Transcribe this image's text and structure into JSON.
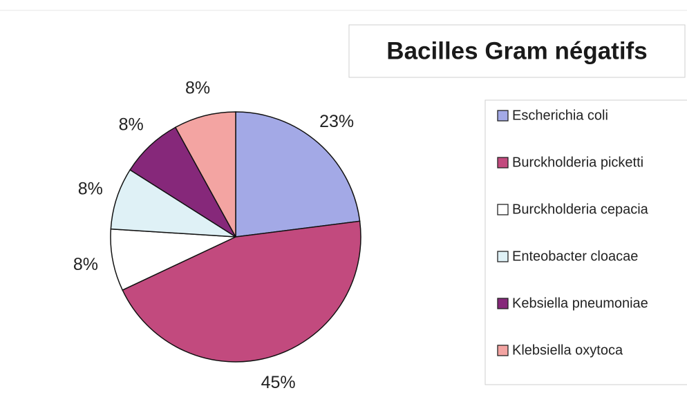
{
  "chart_data": {
    "type": "pie",
    "title": "Bacilles Gram négatifs",
    "categories": [
      "Escherichia coli",
      "Burckholderia picketti",
      "Burckholderia cepacia",
      "Enteobacter cloacae",
      "Kebsiella pneumoniae",
      "Klebsiella oxytoca"
    ],
    "values": [
      23,
      45,
      8,
      8,
      8,
      8
    ],
    "value_labels": [
      "23%",
      "45%",
      "8%",
      "8%",
      "8%",
      "8%"
    ],
    "colors": [
      "#a3a9e6",
      "#c24a7e",
      "#ffffff",
      "#dff1f6",
      "#86287a",
      "#f3a4a2"
    ],
    "legend": "right"
  }
}
